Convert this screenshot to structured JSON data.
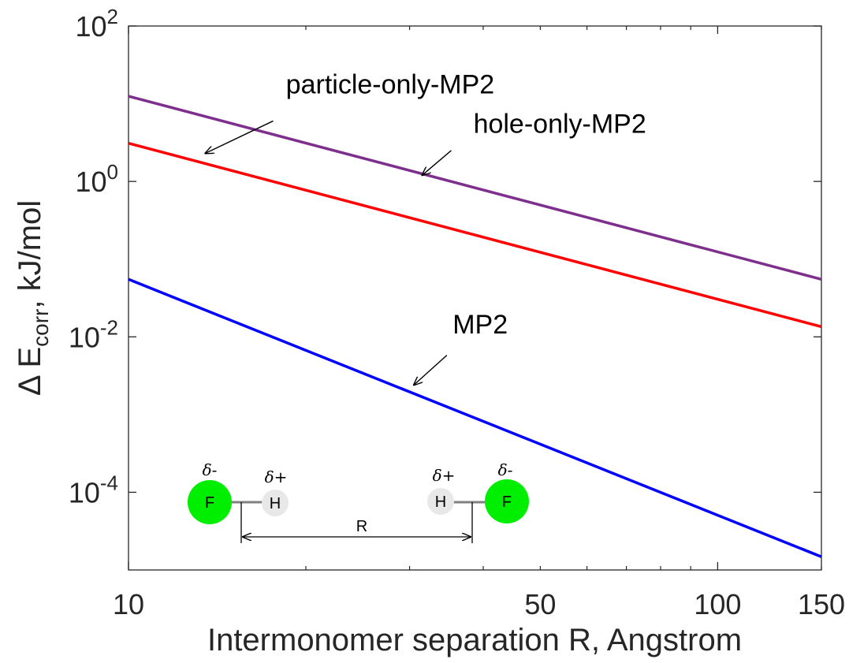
{
  "chart_data": {
    "type": "line",
    "x_scale": "log",
    "y_scale": "log",
    "xlim": [
      10,
      150
    ],
    "ylim": [
      1e-05,
      100
    ],
    "grid": false,
    "xlabel": "Intermonomer separation R, Angstrom",
    "ylabel": {
      "prefix": "Δ E",
      "subscript": "corr",
      "suffix": ", kJ/mol"
    },
    "x_ticks": [
      10,
      50,
      100,
      150
    ],
    "x_tick_labels": [
      "10",
      "50",
      "100",
      "150"
    ],
    "y_ticks": [
      {
        "value": 0.0001,
        "base": "10",
        "exp": "-4"
      },
      {
        "value": 0.01,
        "base": "10",
        "exp": "-2"
      },
      {
        "value": 1,
        "base": "10",
        "exp": "0"
      },
      {
        "value": 100,
        "base": "10",
        "exp": "2"
      }
    ],
    "series": [
      {
        "name": "particle-only-MP2",
        "color": "#7E2F8E",
        "x": [
          10,
          150
        ],
        "y": [
          12.5,
          0.055
        ]
      },
      {
        "name": "hole-only-MP2",
        "color": "#FF0000",
        "x": [
          10,
          150
        ],
        "y": [
          3.1,
          0.0135
        ]
      },
      {
        "name": "MP2",
        "color": "#0000FF",
        "x": [
          10,
          150
        ],
        "y": [
          0.055,
          1.48e-05
        ]
      }
    ],
    "annotations": [
      {
        "text": "particle-only-MP2",
        "text_at": [
          18.5,
          13.5
        ],
        "arrow_from": [
          17.6,
          6.0
        ],
        "arrow_to": [
          13.5,
          2.3
        ]
      },
      {
        "text": "hole-only-MP2",
        "text_at": [
          38.5,
          4.2
        ],
        "arrow_from": [
          35.3,
          2.5
        ],
        "arrow_to": [
          31.5,
          1.2
        ]
      },
      {
        "text": "MP2",
        "text_at": [
          35.5,
          0.011
        ],
        "arrow_from": [
          34.7,
          0.0058
        ],
        "arrow_to": [
          30.5,
          0.0024
        ]
      }
    ]
  },
  "inset": {
    "left_atom": "F",
    "left_h": "H",
    "right_h": "H",
    "right_atom": "F",
    "partial_negative": "δ-",
    "partial_positive": "δ+",
    "distance_label": "R",
    "f_color": "#00EE00",
    "h_color": "#E8E8E8",
    "bond_color": "#808080"
  }
}
